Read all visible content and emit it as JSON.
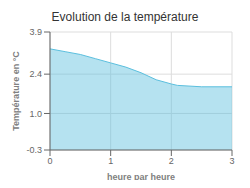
{
  "chart_data": {
    "type": "area",
    "title": "Evolution de la température",
    "xlabel": "heure par heure",
    "ylabel": "Température en °C",
    "x": [
      0,
      0.25,
      0.5,
      0.75,
      1.0,
      1.25,
      1.5,
      1.75,
      2.0,
      2.1,
      2.5,
      3.0
    ],
    "values": [
      3.3,
      3.2,
      3.1,
      2.95,
      2.8,
      2.65,
      2.45,
      2.2,
      2.05,
      2.0,
      1.95,
      1.95
    ],
    "color": "#5bbfde",
    "xlim": [
      0,
      3
    ],
    "ylim": [
      -0.3,
      3.9
    ],
    "xticks": [
      0,
      1,
      2,
      3
    ],
    "yticks": [
      -0.3,
      {
        "value": 1.0,
        "label": "1.0"
      },
      2.4,
      3.9
    ],
    "grid": true
  }
}
